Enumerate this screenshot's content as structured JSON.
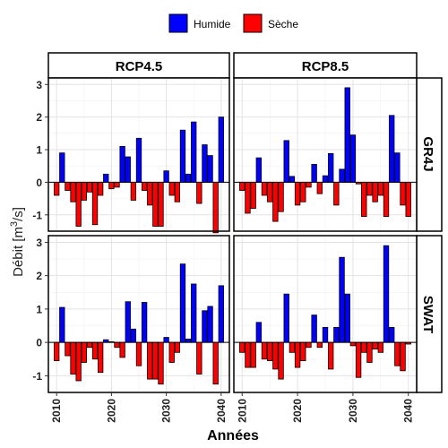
{
  "chart_data": {
    "type": "bar",
    "xlabel": "Années",
    "ylabel": "Débit [m³/s]",
    "ylabel_parts": {
      "base": "Débit [m",
      "sup": "3",
      "tail": "/s]"
    },
    "xlim": [
      2008.5,
      2041.5
    ],
    "ylim": [
      -1.5,
      3.2
    ],
    "x_ticks": [
      2010,
      2020,
      2030,
      2040
    ],
    "y_ticks": [
      -1,
      0,
      1,
      2,
      3
    ],
    "grid": true,
    "legend_position": "top",
    "legend": [
      {
        "name": "Humide",
        "color": "#0000ff"
      },
      {
        "name": "Sèche",
        "color": "#ff0000"
      }
    ],
    "columns": [
      "RCP4.5",
      "RCP8.5"
    ],
    "rows": [
      "GR4J",
      "SWAT"
    ],
    "years": [
      2010,
      2011,
      2012,
      2013,
      2014,
      2015,
      2016,
      2017,
      2018,
      2019,
      2020,
      2021,
      2022,
      2023,
      2024,
      2025,
      2026,
      2027,
      2028,
      2029,
      2030,
      2031,
      2032,
      2033,
      2034,
      2035,
      2036,
      2037,
      2038,
      2039,
      2040
    ],
    "panels": [
      {
        "column": "RCP4.5",
        "row": "GR4J",
        "values": [
          -0.4,
          0.9,
          -0.25,
          -0.6,
          -1.35,
          -0.55,
          -0.3,
          -1.3,
          -0.4,
          0.25,
          -0.2,
          -0.15,
          1.1,
          0.78,
          -0.55,
          1.35,
          -0.25,
          -0.7,
          -1.35,
          -1.35,
          0.35,
          -0.4,
          -0.6,
          1.6,
          0.25,
          1.85,
          -0.65,
          1.15,
          0.82,
          -1.55,
          2.0
        ]
      },
      {
        "column": "RCP8.5",
        "row": "GR4J",
        "values": [
          -0.25,
          -0.95,
          -0.8,
          0.75,
          -0.4,
          -0.6,
          -1.2,
          -0.9,
          1.28,
          0.18,
          -0.7,
          -0.6,
          -0.15,
          0.55,
          -0.35,
          0.2,
          0.88,
          -0.7,
          0.4,
          2.9,
          1.45,
          -0.05,
          -1.05,
          -0.4,
          -0.6,
          -0.4,
          -1.05,
          2.05,
          0.9,
          -0.7,
          -1.05
        ]
      },
      {
        "column": "RCP4.5",
        "row": "SWAT",
        "values": [
          -0.55,
          1.05,
          -0.4,
          -0.95,
          -1.15,
          -0.6,
          -0.15,
          -0.5,
          -0.9,
          0.08,
          0.02,
          -0.15,
          -0.45,
          1.22,
          0.4,
          -0.7,
          1.2,
          -1.1,
          -1.1,
          -1.25,
          0.15,
          -0.6,
          -0.3,
          2.35,
          0.1,
          1.75,
          -0.95,
          0.95,
          1.08,
          -1.25,
          1.7
        ]
      },
      {
        "column": "RCP8.5",
        "row": "SWAT",
        "values": [
          -0.3,
          -0.75,
          -0.75,
          0.6,
          -0.5,
          -0.55,
          -0.8,
          -1.1,
          1.45,
          -0.3,
          -0.75,
          -0.55,
          -0.15,
          0.82,
          -0.15,
          0.45,
          -0.8,
          0.45,
          2.55,
          1.45,
          -0.1,
          -1.05,
          -0.3,
          -0.6,
          -0.2,
          -0.3,
          2.9,
          0.45,
          -0.7,
          -0.85,
          -0.05
        ]
      }
    ]
  }
}
